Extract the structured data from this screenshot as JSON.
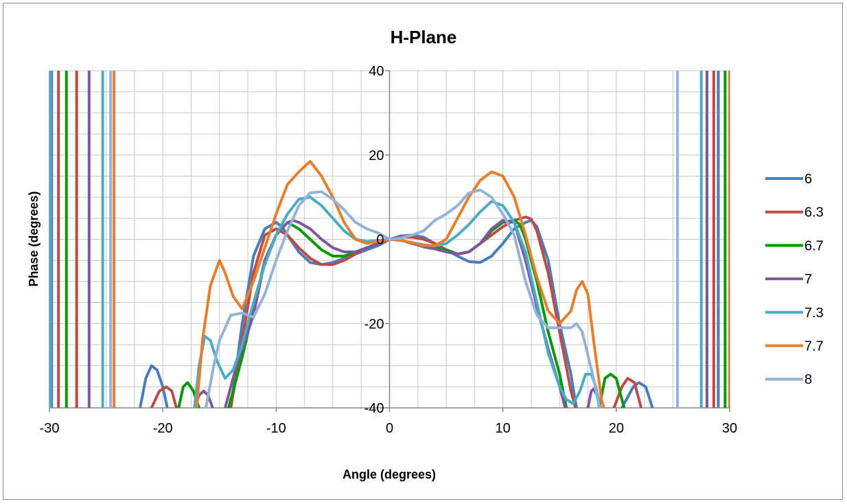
{
  "chart_data": {
    "type": "line",
    "title": "H-Plane",
    "xlabel": "Angle (degrees)",
    "ylabel": "Phase (degrees)",
    "xlim": [
      -30,
      30
    ],
    "ylim": [
      -40,
      40
    ],
    "xticks": [
      -30,
      -20,
      -10,
      0,
      10,
      20,
      30
    ],
    "yticks": [
      -40,
      -20,
      0,
      20,
      40
    ],
    "x_minor_step": 2.5,
    "y_minor_step": 5,
    "grid": true,
    "legend_position": "right",
    "series": [
      {
        "name": "6",
        "color": "#4A7EBB",
        "points": [
          [
            -22,
            -40
          ],
          [
            -21.5,
            -33
          ],
          [
            -21,
            -30
          ],
          [
            -20.5,
            -31
          ],
          [
            -20,
            -35
          ],
          [
            -19.6,
            -40
          ],
          [
            -14,
            -40
          ],
          [
            -13,
            -20
          ],
          [
            -12,
            -4
          ],
          [
            -11,
            2.5
          ],
          [
            -10,
            4
          ],
          [
            -9.5,
            3
          ],
          [
            -9,
            1
          ],
          [
            -8,
            -3
          ],
          [
            -7,
            -5.5
          ],
          [
            -6,
            -6
          ],
          [
            -5,
            -5.5
          ],
          [
            -4,
            -4.5
          ],
          [
            -3,
            -3.5
          ],
          [
            -2,
            -2.5
          ],
          [
            -1,
            -1.5
          ],
          [
            0,
            0
          ],
          [
            1,
            0.8
          ],
          [
            2,
            1
          ],
          [
            3,
            0.5
          ],
          [
            4,
            -1
          ],
          [
            5,
            -2.5
          ],
          [
            6,
            -4
          ],
          [
            7,
            -5.3
          ],
          [
            8,
            -5.5
          ],
          [
            9,
            -4
          ],
          [
            10,
            -1
          ],
          [
            11,
            2.5
          ],
          [
            12,
            4
          ],
          [
            12.5,
            4.5
          ],
          [
            13,
            3
          ],
          [
            14,
            -5
          ],
          [
            15,
            -20
          ],
          [
            16,
            -32
          ],
          [
            16.3,
            -37
          ],
          [
            16.5,
            -40
          ],
          [
            20.5,
            -40
          ],
          [
            21.5,
            -35
          ],
          [
            22,
            -34
          ],
          [
            22.6,
            -35
          ],
          [
            23.2,
            -40
          ]
        ],
        "walls": [
          -29.8,
          29.0
        ]
      },
      {
        "name": "6.3",
        "color": "#BE4B48",
        "points": [
          [
            -21,
            -40
          ],
          [
            -20.3,
            -36
          ],
          [
            -19.7,
            -35
          ],
          [
            -19.2,
            -36
          ],
          [
            -18.8,
            -40
          ],
          [
            -14,
            -40
          ],
          [
            -13,
            -24
          ],
          [
            -12,
            -8
          ],
          [
            -11,
            1
          ],
          [
            -10,
            2.5
          ],
          [
            -9,
            1
          ],
          [
            -8,
            -2
          ],
          [
            -7,
            -4.5
          ],
          [
            -6,
            -6
          ],
          [
            -5,
            -6
          ],
          [
            -4,
            -5
          ],
          [
            -3,
            -3.5
          ],
          [
            -2,
            -2
          ],
          [
            -1,
            -1
          ],
          [
            0,
            0
          ],
          [
            1,
            0.5
          ],
          [
            2,
            0.5
          ],
          [
            3,
            0
          ],
          [
            4,
            -1
          ],
          [
            5,
            -2.5
          ],
          [
            6,
            -3.5
          ],
          [
            7,
            -3
          ],
          [
            8,
            -1
          ],
          [
            9,
            1
          ],
          [
            10,
            3
          ],
          [
            11,
            4.5
          ],
          [
            12,
            5.3
          ],
          [
            12.5,
            4.8
          ],
          [
            13,
            2
          ],
          [
            14,
            -8
          ],
          [
            15,
            -22
          ],
          [
            16,
            -36
          ],
          [
            16.4,
            -40
          ],
          [
            19.8,
            -40
          ],
          [
            20.5,
            -35
          ],
          [
            21,
            -33
          ],
          [
            21.6,
            -34
          ],
          [
            22.2,
            -40
          ]
        ],
        "walls": [
          -29.2,
          -27.6,
          28.6
        ]
      },
      {
        "name": "6.7",
        "color": "#009900",
        "points": [
          [
            -18.6,
            -40
          ],
          [
            -18.2,
            -35
          ],
          [
            -17.8,
            -34
          ],
          [
            -17.3,
            -36
          ],
          [
            -16.8,
            -40
          ],
          [
            -14.2,
            -40
          ],
          [
            -13,
            -28
          ],
          [
            -11,
            -5
          ],
          [
            -10,
            1
          ],
          [
            -9,
            4
          ],
          [
            -8,
            2.5
          ],
          [
            -7,
            0
          ],
          [
            -6,
            -2.5
          ],
          [
            -5,
            -4
          ],
          [
            -4,
            -4
          ],
          [
            -3,
            -3
          ],
          [
            -2,
            -2
          ],
          [
            -1,
            -1
          ],
          [
            0,
            0
          ],
          [
            1,
            -0.3
          ],
          [
            2,
            -0.8
          ],
          [
            3,
            -1.5
          ],
          [
            4,
            -2
          ],
          [
            5,
            -2.5
          ],
          [
            6,
            -3.5
          ],
          [
            7,
            -3
          ],
          [
            8,
            -1
          ],
          [
            9,
            2
          ],
          [
            10,
            4
          ],
          [
            11,
            4.5
          ],
          [
            11.5,
            3.5
          ],
          [
            12,
            0
          ],
          [
            13,
            -10
          ],
          [
            14,
            -22
          ],
          [
            15,
            -32
          ],
          [
            15.6,
            -40
          ],
          [
            18.5,
            -40
          ],
          [
            19,
            -33
          ],
          [
            19.5,
            -32
          ],
          [
            20,
            -33
          ],
          [
            20.7,
            -40
          ]
        ],
        "walls": [
          -28.5,
          29.6
        ]
      },
      {
        "name": "7",
        "color": "#7E57A0",
        "points": [
          [
            -17.2,
            -40
          ],
          [
            -16.8,
            -37
          ],
          [
            -16.4,
            -36
          ],
          [
            -16.0,
            -37
          ],
          [
            -15.6,
            -40
          ],
          [
            -14.5,
            -40
          ],
          [
            -13.5,
            -30
          ],
          [
            -12,
            -18
          ],
          [
            -11,
            -5
          ],
          [
            -10,
            1
          ],
          [
            -9,
            4
          ],
          [
            -8.5,
            4.5
          ],
          [
            -8,
            4
          ],
          [
            -7,
            2.5
          ],
          [
            -6,
            0
          ],
          [
            -5,
            -2
          ],
          [
            -4,
            -3
          ],
          [
            -3,
            -3
          ],
          [
            -2,
            -2
          ],
          [
            -1,
            -1
          ],
          [
            0,
            0
          ],
          [
            1,
            -0.2
          ],
          [
            2,
            -1
          ],
          [
            3,
            -1.8
          ],
          [
            4,
            -2.3
          ],
          [
            5,
            -3
          ],
          [
            6,
            -3.5
          ],
          [
            7,
            -3
          ],
          [
            8,
            -1
          ],
          [
            9,
            2.5
          ],
          [
            10,
            4.5
          ],
          [
            11,
            4
          ],
          [
            12,
            -5
          ],
          [
            13,
            -16
          ],
          [
            14,
            -26
          ],
          [
            15,
            -35
          ],
          [
            15.5,
            -40
          ],
          [
            17.5,
            -40
          ],
          [
            17.8,
            -36
          ],
          [
            18.0,
            -35.5
          ],
          [
            18.3,
            -37
          ],
          [
            18.6,
            -40
          ]
        ],
        "walls": [
          -30,
          -26.5,
          28.0
        ]
      },
      {
        "name": "7.3",
        "color": "#4AACC5",
        "points": [
          [
            -17.2,
            -40
          ],
          [
            -16.8,
            -30
          ],
          [
            -16.3,
            -23
          ],
          [
            -15.8,
            -24
          ],
          [
            -15.2,
            -29
          ],
          [
            -14.5,
            -33
          ],
          [
            -13.8,
            -31
          ],
          [
            -13,
            -25
          ],
          [
            -12,
            -15
          ],
          [
            -11,
            -6
          ],
          [
            -10,
            1
          ],
          [
            -9,
            6
          ],
          [
            -8,
            9.5
          ],
          [
            -7,
            10
          ],
          [
            -6,
            8
          ],
          [
            -5,
            5
          ],
          [
            -4,
            2
          ],
          [
            -3,
            0
          ],
          [
            -2,
            -0.5
          ],
          [
            -1,
            -0.3
          ],
          [
            0,
            0
          ],
          [
            1,
            -0.3
          ],
          [
            2,
            -0.8
          ],
          [
            3,
            -1.3
          ],
          [
            4,
            -1.6
          ],
          [
            5,
            -1
          ],
          [
            6,
            1
          ],
          [
            7,
            3.5
          ],
          [
            8,
            6.5
          ],
          [
            9,
            9
          ],
          [
            10,
            8
          ],
          [
            11,
            4
          ],
          [
            12,
            -3
          ],
          [
            13,
            -15
          ],
          [
            14,
            -27
          ],
          [
            15,
            -35
          ],
          [
            15.6,
            -38
          ],
          [
            16.2,
            -39
          ],
          [
            16.8,
            -36
          ],
          [
            17.3,
            -32
          ],
          [
            17.8,
            -32
          ],
          [
            18.2,
            -35
          ],
          [
            18.6,
            -40
          ]
        ],
        "walls": [
          -29.9,
          -25.3,
          27.5
        ]
      },
      {
        "name": "7.7",
        "color": "#E77F2E",
        "points": [
          [
            -17.0,
            -40
          ],
          [
            -16.5,
            -24
          ],
          [
            -15.8,
            -11
          ],
          [
            -15,
            -5
          ],
          [
            -14.5,
            -8
          ],
          [
            -13.8,
            -13.5
          ],
          [
            -13,
            -16.5
          ],
          [
            -12,
            -10
          ],
          [
            -11,
            -2
          ],
          [
            -10,
            6
          ],
          [
            -9,
            13
          ],
          [
            -8,
            16
          ],
          [
            -7,
            18.5
          ],
          [
            -6,
            15
          ],
          [
            -5,
            10
          ],
          [
            -4,
            4
          ],
          [
            -3,
            0
          ],
          [
            -2,
            -1
          ],
          [
            -1,
            -0.5
          ],
          [
            0,
            0
          ],
          [
            1,
            -0.2
          ],
          [
            2,
            -0.8
          ],
          [
            3,
            -1.5
          ],
          [
            4,
            -1.5
          ],
          [
            5,
            0
          ],
          [
            6,
            5
          ],
          [
            7,
            10
          ],
          [
            8,
            14
          ],
          [
            9,
            16
          ],
          [
            10,
            15
          ],
          [
            11,
            10
          ],
          [
            12,
            1
          ],
          [
            13,
            -9
          ],
          [
            14,
            -17
          ],
          [
            15,
            -20
          ],
          [
            16,
            -17
          ],
          [
            16.5,
            -12
          ],
          [
            17,
            -10
          ],
          [
            17.5,
            -13
          ],
          [
            18,
            -24
          ],
          [
            18.7,
            -38
          ],
          [
            18.9,
            -40
          ]
        ],
        "walls": [
          -24.3,
          30
        ]
      },
      {
        "name": "8",
        "color": "#95B3D7",
        "points": [
          [
            -16.2,
            -40
          ],
          [
            -15.5,
            -30
          ],
          [
            -15,
            -24
          ],
          [
            -14,
            -18
          ],
          [
            -13,
            -17.5
          ],
          [
            -12,
            -18.5
          ],
          [
            -11,
            -13
          ],
          [
            -10,
            -5
          ],
          [
            -9,
            2
          ],
          [
            -8,
            8
          ],
          [
            -7,
            11
          ],
          [
            -6,
            11.3
          ],
          [
            -5,
            9.5
          ],
          [
            -4,
            7
          ],
          [
            -3,
            4
          ],
          [
            -2,
            2.5
          ],
          [
            -1,
            1.5
          ],
          [
            0,
            0
          ],
          [
            1,
            0.3
          ],
          [
            2,
            1
          ],
          [
            3,
            2
          ],
          [
            4,
            4.5
          ],
          [
            5,
            6
          ],
          [
            6,
            8
          ],
          [
            7,
            11
          ],
          [
            8,
            11.7
          ],
          [
            9,
            10
          ],
          [
            10,
            6
          ],
          [
            11,
            1
          ],
          [
            12,
            -10
          ],
          [
            13,
            -18
          ],
          [
            14,
            -21
          ],
          [
            15,
            -21
          ],
          [
            16,
            -21
          ],
          [
            16.5,
            -20
          ],
          [
            17,
            -22
          ],
          [
            18,
            -33
          ],
          [
            18.5,
            -40
          ]
        ],
        "walls": [
          -24.6,
          25.4
        ]
      }
    ]
  }
}
